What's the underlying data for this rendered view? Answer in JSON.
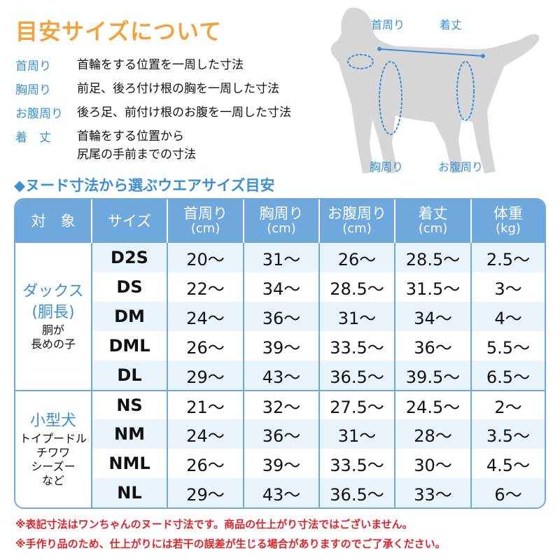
{
  "title": "目安サイズについて",
  "definitions": [
    {
      "term": "首周り",
      "desc": [
        "首輪をする位置を一周した寸法"
      ]
    },
    {
      "term": "胸周り",
      "desc": [
        "前足、後ろ付け根の胸を一周した寸法"
      ]
    },
    {
      "term": "お腹周り",
      "desc": [
        "後ろ足、前付け根のお腹を一周した寸法"
      ]
    },
    {
      "term": "着　丈",
      "desc": [
        "首輪をする位置から",
        "尻尾の手前までの寸法"
      ]
    }
  ],
  "illustration": {
    "labels": {
      "neck": "首周り",
      "length": "着丈",
      "chest": "胸周り",
      "belly": "お腹周り"
    }
  },
  "subtitle": "◆ヌード寸法から選ぶウエアサイズ目安",
  "colors": {
    "title": "#f2a23c",
    "accent": "#3b8fd6",
    "header": "#6fa8dc",
    "row_alt": "#e8f3fb",
    "note": "#e0242b",
    "dog": "#d6d6d6"
  },
  "table": {
    "headers": [
      {
        "label": "対　象",
        "unit": ""
      },
      {
        "label": "サイズ",
        "unit": ""
      },
      {
        "label": "首周り",
        "unit": "(cm)"
      },
      {
        "label": "胸周り",
        "unit": "(cm)"
      },
      {
        "label": "お腹周り",
        "unit": "(cm)"
      },
      {
        "label": "着丈",
        "unit": "(cm)"
      },
      {
        "label": "体重",
        "unit": "(kg)"
      }
    ],
    "groups": [
      {
        "name": [
          "ダックス",
          "(胴長)"
        ],
        "desc": [
          "胴が",
          "長めの子"
        ],
        "rows": [
          [
            "D2S",
            "20～",
            "31～",
            "26～",
            "28.5～",
            "2.5～"
          ],
          [
            "DS",
            "22～",
            "34～",
            "28.5～",
            "31.5～",
            "3～"
          ],
          [
            "DM",
            "24～",
            "36～",
            "31～",
            "34～",
            "4～"
          ],
          [
            "DML",
            "26～",
            "39～",
            "33.5～",
            "36～",
            "5.5～"
          ],
          [
            "DL",
            "29～",
            "43～",
            "36.5～",
            "39.5～",
            "6.5～"
          ]
        ]
      },
      {
        "name": [
          "小型犬"
        ],
        "desc": [
          "トイプードル",
          "チワワ",
          "シーズー",
          "など"
        ],
        "rows": [
          [
            "NS",
            "21～",
            "32～",
            "27.5～",
            "24.5～",
            "2～"
          ],
          [
            "NM",
            "24～",
            "36～",
            "31～",
            "28～",
            "3.5～"
          ],
          [
            "NML",
            "26～",
            "39～",
            "33.5～",
            "30～",
            "4.5～"
          ],
          [
            "NL",
            "29～",
            "43～",
            "36.5～",
            "33～",
            "6～"
          ]
        ]
      }
    ]
  },
  "notes": [
    "※表記寸法はワンちゃんのヌード寸法です。商品の仕上がり寸法ではございません。",
    "※手作り品のため、仕上がりには若干の誤差が生じる場合がありますのでご了承ください。"
  ]
}
